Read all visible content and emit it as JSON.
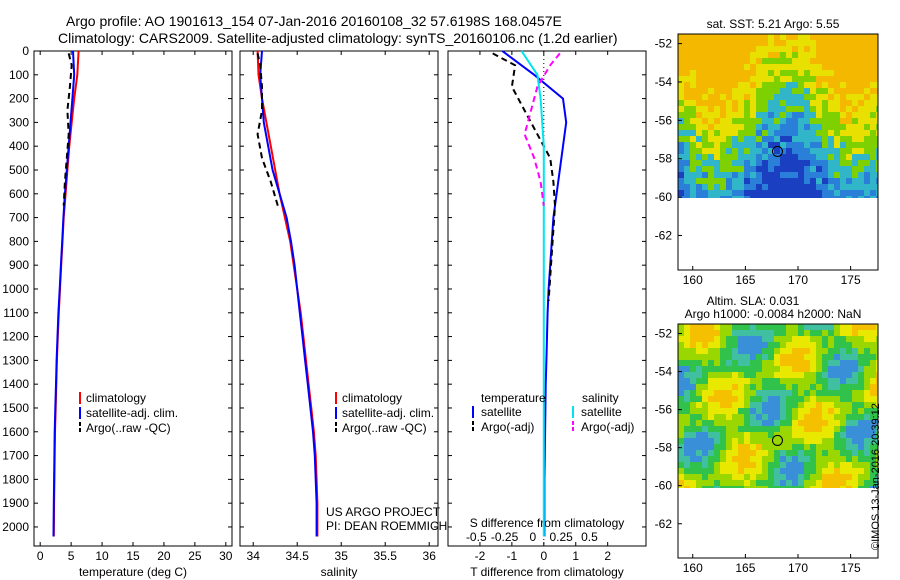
{
  "header": {
    "line1": "Argo profile: AO 1901613_154 07-Jan-2016 20160108_32 57.6198S 168.0457E",
    "line2": "Climatology: CARS2009. Satellite-adjusted climatology: synTS_20160106.nc (1.2d earlier)"
  },
  "maps": {
    "sst_title": "sat. SST: 5.21 Argo: 5.55",
    "sla_title_1": "Altim. SLA: 0.031",
    "sla_title_2": "Argo h1000: -0.0084 h2000: NaN",
    "lat_ticks": [
      "-52",
      "-54",
      "-56",
      "-58",
      "-60",
      "-62"
    ],
    "lon_ticks": [
      "160",
      "165",
      "170",
      "175"
    ]
  },
  "watermark": "©IMOS 13-Jan-2016 20:39:12",
  "chart_data": [
    {
      "type": "line",
      "xlabel": "temperature (deg C)",
      "xlim": [
        -1,
        31
      ],
      "ylim": [
        0,
        2080
      ],
      "y_ticks": [
        "0",
        "100",
        "200",
        "300",
        "400",
        "500",
        "600",
        "700",
        "800",
        "900",
        "1000",
        "1100",
        "1200",
        "1300",
        "1400",
        "1500",
        "1600",
        "1700",
        "1800",
        "1900",
        "2000"
      ],
      "x_ticks": [
        "0",
        "5",
        "10",
        "15",
        "20",
        "25",
        "30"
      ],
      "legend": "lower-left",
      "series": [
        {
          "name": "climatology",
          "color": "#ff0000",
          "dash": false,
          "x": [
            6.2,
            6.0,
            5.5,
            5.1,
            4.7,
            4.4,
            4.1,
            3.8,
            3.6,
            3.4,
            3.2,
            3.0,
            2.85,
            2.7,
            2.6,
            2.5,
            2.4,
            2.35,
            2.3,
            2.25,
            2.2
          ],
          "y": [
            0,
            100,
            200,
            300,
            400,
            500,
            600,
            700,
            800,
            900,
            1000,
            1100,
            1200,
            1300,
            1400,
            1500,
            1600,
            1700,
            1800,
            1900,
            2040
          ]
        },
        {
          "name": "satellite-adj. clim.",
          "color": "#0000ff",
          "dash": false,
          "x": [
            5.3,
            5.5,
            5.2,
            4.9,
            4.6,
            4.3,
            4.0,
            3.75,
            3.55,
            3.35,
            3.15,
            2.95,
            2.8,
            2.65,
            2.55,
            2.45,
            2.35,
            2.3,
            2.25,
            2.2,
            2.15
          ],
          "y": [
            0,
            100,
            200,
            300,
            400,
            500,
            600,
            700,
            800,
            900,
            1000,
            1100,
            1200,
            1300,
            1400,
            1500,
            1600,
            1700,
            1800,
            1900,
            2040
          ]
        },
        {
          "name": "Argo(..raw -QC)",
          "color": "#000000",
          "dash": true,
          "x": [
            4.6,
            5.1,
            4.8,
            4.4,
            4.6,
            4.3,
            4.0,
            3.8
          ],
          "y": [
            10,
            60,
            150,
            250,
            350,
            450,
            550,
            650
          ]
        }
      ],
      "annotations": []
    },
    {
      "type": "line",
      "xlabel": "salinity",
      "xlim": [
        33.85,
        36.1
      ],
      "ylim": [
        0,
        2080
      ],
      "x_ticks": [
        "34",
        "34.5",
        "35",
        "35.5",
        "36"
      ],
      "legend": "lower-left",
      "series": [
        {
          "name": "climatology",
          "color": "#ff0000",
          "dash": false,
          "x": [
            34.05,
            34.06,
            34.1,
            34.15,
            34.2,
            34.25,
            34.3,
            34.36,
            34.42,
            34.46,
            34.5,
            34.54,
            34.57,
            34.6,
            34.63,
            34.66,
            34.69,
            34.71,
            34.72,
            34.73,
            34.73
          ],
          "y": [
            0,
            100,
            200,
            300,
            400,
            500,
            600,
            700,
            800,
            900,
            1000,
            1100,
            1200,
            1300,
            1400,
            1500,
            1600,
            1700,
            1800,
            1900,
            2040
          ]
        },
        {
          "name": "satellite-adj. clim.",
          "color": "#0000ff",
          "dash": false,
          "x": [
            34.1,
            34.08,
            34.1,
            34.12,
            34.17,
            34.22,
            34.3,
            34.38,
            34.43,
            34.47,
            34.5,
            34.53,
            34.56,
            34.59,
            34.62,
            34.65,
            34.68,
            34.7,
            34.71,
            34.72,
            34.72
          ],
          "y": [
            0,
            100,
            200,
            300,
            400,
            500,
            600,
            700,
            800,
            900,
            1000,
            1100,
            1200,
            1300,
            1400,
            1500,
            1600,
            1700,
            1800,
            1900,
            2040
          ]
        },
        {
          "name": "Argo(..raw -QC)",
          "color": "#000000",
          "dash": true,
          "x": [
            34.05,
            34.08,
            34.1,
            34.1,
            34.05,
            34.1,
            34.2,
            34.28
          ],
          "y": [
            10,
            60,
            150,
            250,
            350,
            450,
            550,
            650
          ]
        }
      ],
      "annotations": [
        "US ARGO PROJECT",
        "PI: DEAN ROEMMICH"
      ]
    },
    {
      "type": "line",
      "xlabel": "T difference from climatology",
      "top_label": "S difference from climatology",
      "xlim": [
        -3,
        3.2
      ],
      "ylim": [
        0,
        2080
      ],
      "x_ticks": [
        "-2",
        "-1",
        "0",
        "1",
        "2"
      ],
      "top_ticks": [
        "-0.5",
        "-0.25",
        "0",
        "0.25",
        "0.5"
      ],
      "legend_headers": [
        "temperature",
        "salinity"
      ],
      "legend": "lower-left",
      "series": [
        {
          "name": "satellite",
          "group": "temperature",
          "color": "#0000ff",
          "dash": false,
          "x": [
            -1.3,
            -0.3,
            0.6,
            0.7,
            0.6,
            0.5,
            0.4,
            0.3,
            0.25,
            0.2,
            0.15,
            0.12,
            0.1,
            0.08,
            0.06,
            0.05,
            0.04,
            0.03,
            0.02,
            0.02,
            0.02
          ],
          "y": [
            0,
            100,
            200,
            300,
            400,
            500,
            600,
            700,
            800,
            900,
            1000,
            1100,
            1200,
            1300,
            1400,
            1500,
            1600,
            1700,
            1800,
            1900,
            2040
          ]
        },
        {
          "name": "Argo(-adj)",
          "group": "temperature",
          "color": "#000000",
          "dash": true,
          "x": [
            -1.6,
            -0.9,
            -1.0,
            -0.6,
            -0.2,
            0.2,
            0.3,
            0.35,
            0.3,
            0.25,
            0.2,
            0.15
          ],
          "y": [
            10,
            60,
            150,
            250,
            350,
            450,
            550,
            650,
            750,
            850,
            950,
            1050
          ]
        },
        {
          "name": "satellite",
          "group": "salinity",
          "color": "#00e5ee",
          "dash": false,
          "x": [
            -0.7,
            -0.2,
            -0.1,
            -0.05,
            0.0,
            0.0,
            0.0,
            0.0,
            0.0,
            0.0,
            0.0,
            0.0,
            0.0,
            0.0,
            0.0,
            0.0,
            0.0,
            0.0,
            0.0,
            0.0,
            0.0
          ],
          "y": [
            0,
            100,
            200,
            300,
            400,
            500,
            600,
            700,
            800,
            900,
            1000,
            1100,
            1200,
            1300,
            1400,
            1500,
            1600,
            1700,
            1800,
            1900,
            2040
          ]
        },
        {
          "name": "Argo(-adj)",
          "group": "salinity",
          "color": "#ff00ff",
          "dash": true,
          "x": [
            0.5,
            0.2,
            -0.2,
            -0.4,
            -0.6,
            -0.3,
            -0.1,
            0.0
          ],
          "y": [
            10,
            60,
            150,
            250,
            350,
            450,
            550,
            650
          ]
        }
      ],
      "annotations": []
    }
  ]
}
